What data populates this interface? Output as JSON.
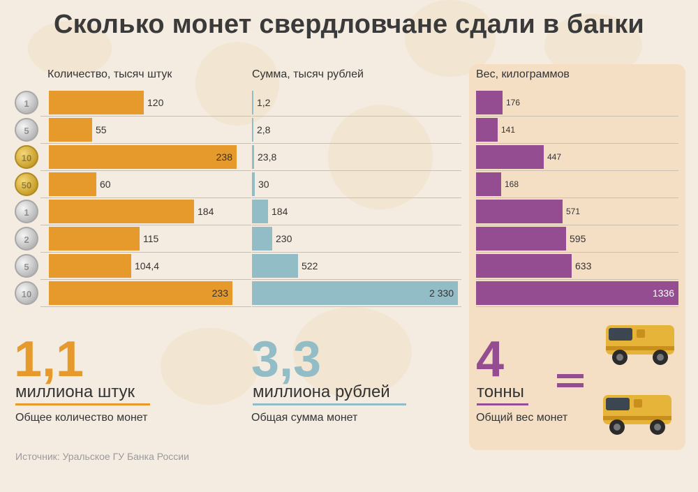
{
  "title": "Сколько монет свердловчане сдали в банки",
  "headers": {
    "count": "Количество, тысяч штук",
    "sum": "Сумма, тысяч рублей",
    "weight": "Вес, килограммов"
  },
  "coins": [
    "1 коп.",
    "5 коп.",
    "10 коп.",
    "50 коп.",
    "1 руб.",
    "2 руб.",
    "5 руб.",
    "10 руб."
  ],
  "chart_data": [
    {
      "type": "bar",
      "orientation": "horizontal",
      "title": "Количество, тысяч штук",
      "categories": [
        "1 коп.",
        "5 коп.",
        "10 коп.",
        "50 коп.",
        "1 руб.",
        "2 руб.",
        "5 руб.",
        "10 руб."
      ],
      "values": [
        120,
        55,
        238,
        60,
        184,
        115,
        104.4,
        233
      ],
      "labels": [
        "120",
        "55",
        "238",
        "60",
        "184",
        "115",
        "104,4",
        "233"
      ],
      "xlim": [
        0,
        238
      ],
      "color": "#e59a2b"
    },
    {
      "type": "bar",
      "orientation": "horizontal",
      "title": "Сумма, тысяч рублей",
      "categories": [
        "1 коп.",
        "5 коп.",
        "10 коп.",
        "50 коп.",
        "1 руб.",
        "2 руб.",
        "5 руб.",
        "10 руб."
      ],
      "values": [
        1.2,
        2.8,
        23.8,
        30,
        184,
        230,
        522,
        2330
      ],
      "labels": [
        "1,2",
        "2,8",
        "23,8",
        "30",
        "184",
        "230",
        "522",
        "2 330"
      ],
      "xlim": [
        0,
        2330
      ],
      "color": "#92bcc6"
    },
    {
      "type": "bar",
      "orientation": "horizontal",
      "title": "Вес, килограммов",
      "categories": [
        "1 коп.",
        "5 коп.",
        "10 коп.",
        "50 коп.",
        "1 руб.",
        "2 руб.",
        "5 руб.",
        "10 руб."
      ],
      "values": [
        176,
        141,
        447,
        168,
        571,
        595,
        633,
        1336
      ],
      "labels": [
        "176",
        "141",
        "447",
        "168",
        "571",
        "595",
        "633",
        "1336"
      ],
      "xlim": [
        0,
        1336
      ],
      "color": "#944d90"
    }
  ],
  "totals": {
    "count": {
      "value": "1,1",
      "unit": "миллиона штук",
      "caption": "Общее количество монет",
      "color": "#e59a2b"
    },
    "sum": {
      "value": "3,3",
      "unit": "миллиона рублей",
      "caption": "Общая сумма монет",
      "color": "#92bcc6"
    },
    "weight": {
      "value": "4",
      "unit": "тонны",
      "caption": "Общий вес монет",
      "color": "#944d90"
    }
  },
  "source": "Источник: Уральское ГУ Банка России"
}
